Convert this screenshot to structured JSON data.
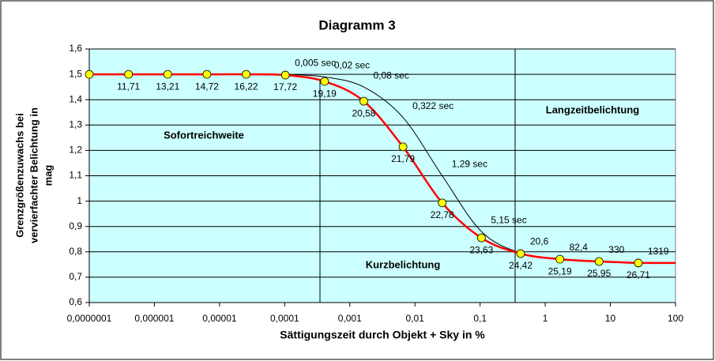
{
  "chart_data": {
    "type": "line",
    "title": "Diagramm 3",
    "x_label": "Sättigungszeit durch Objekt + Sky in %",
    "y_label": [
      "Grenzgrößenzuwachs bei",
      "vervierfachter Belichtung in",
      "mag"
    ],
    "x_scale": "log",
    "grid": true,
    "xlim": [
      1e-07,
      100
    ],
    "xticks": [
      {
        "value": 1e-07,
        "label": "0,0000001"
      },
      {
        "value": 1e-06,
        "label": "0,000001"
      },
      {
        "value": 1e-05,
        "label": "0,00001"
      },
      {
        "value": 0.0001,
        "label": "0,0001"
      },
      {
        "value": 0.001,
        "label": "0,001"
      },
      {
        "value": 0.01,
        "label": "0,01"
      },
      {
        "value": 0.1,
        "label": "0,1"
      },
      1,
      10,
      100
    ],
    "ylim": [
      0.6,
      1.6
    ],
    "yticks": [
      {
        "value": 0.6,
        "label": "0,6"
      },
      {
        "value": 0.7,
        "label": "0,7"
      },
      {
        "value": 0.8,
        "label": "0,8"
      },
      {
        "value": 0.9,
        "label": "0,9"
      },
      1,
      {
        "value": 1.1,
        "label": "1,1"
      },
      {
        "value": 1.2,
        "label": "1,2"
      },
      {
        "value": 1.3,
        "label": "1,3"
      },
      {
        "value": 1.4,
        "label": "1,4"
      },
      {
        "value": 1.5,
        "label": "1,5"
      },
      {
        "value": 1.6,
        "label": "1,6"
      }
    ],
    "regions": [
      "Sofortreichweite",
      "Langzeitbelichtung",
      "Kurzbelichtung"
    ],
    "series": [
      {
        "color": "#ff0000",
        "width": 2.5,
        "marker": true,
        "marker_color": "#ffff00",
        "label_side": "below",
        "x": [
          1e-07,
          4e-07,
          1.6e-06,
          6.4e-06,
          2.56e-05,
          0.0001024,
          0.0004096,
          0.0016384,
          0.0065536,
          0.0262144,
          0.1048576,
          0.4194304,
          1.6777216,
          6.7108864,
          26.8435456
        ],
        "values": [
          1.5,
          1.5,
          1.5,
          1.5,
          1.5,
          1.497,
          1.472,
          1.394,
          1.214,
          0.993,
          0.855,
          0.793,
          0.771,
          0.762,
          0.756
        ],
        "value_labels": [
          null,
          "11,71",
          "13,21",
          "14,72",
          "16,22",
          "17,72",
          "19,19",
          "20,58",
          "21,79",
          "22,78",
          "23,63",
          "24,42",
          "25,19",
          "25,95",
          "26,71"
        ]
      },
      {
        "color": "#000000",
        "width": 1,
        "marker": false,
        "label_side": "above",
        "x": [
          0.0001024,
          0.0004096,
          0.0016384,
          0.0065536,
          0.0262144,
          0.1048576,
          0.4194304,
          1.6777216,
          6.7108864,
          26.8435456
        ],
        "values": [
          1.5,
          1.49,
          1.45,
          1.33,
          1.1,
          0.88,
          0.795,
          0.772,
          0.762,
          0.757
        ],
        "value_labels": [
          "0,005 sec",
          "0,02 sec",
          "0,08 sec",
          "0,322 sec",
          "1,29 sec",
          "5,15 sec",
          "20,6",
          "82,4",
          "330",
          "1319"
        ]
      }
    ]
  }
}
